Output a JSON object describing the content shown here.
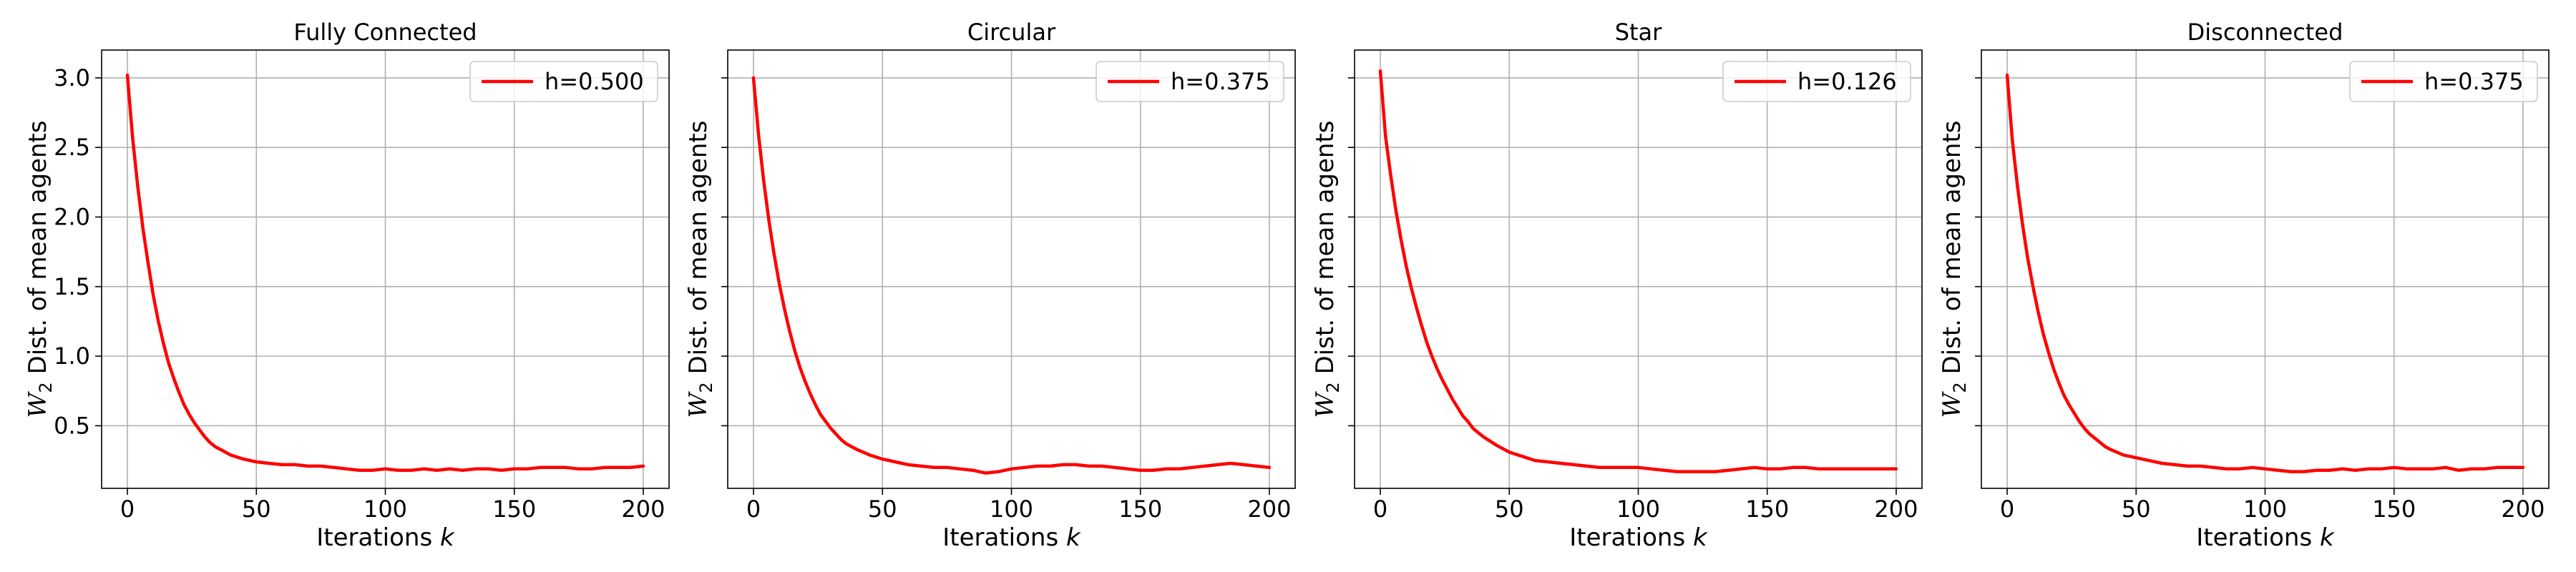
{
  "figure": {
    "background": "#ffffff"
  },
  "chart_data": [
    {
      "type": "line",
      "title": "Fully Connected",
      "xlabel": "Iterations k",
      "ylabel": "W2 Dist. of mean agents",
      "xlim": [
        -10,
        210
      ],
      "ylim": [
        0.05,
        3.2
      ],
      "xticks": [
        0,
        50,
        100,
        150,
        200
      ],
      "yticks": [
        0.5,
        1.0,
        1.5,
        2.0,
        2.5,
        3.0
      ],
      "ytick_labels": [
        "0.5",
        "1.0",
        "1.5",
        "2.0",
        "2.5",
        "3.0"
      ],
      "show_ytick_labels": true,
      "grid": true,
      "legend_position": "upper right",
      "series": [
        {
          "name": "h=0.500",
          "color": "#ff0000",
          "x": [
            0,
            2,
            4,
            6,
            8,
            10,
            12,
            14,
            16,
            18,
            20,
            22,
            24,
            26,
            28,
            30,
            32,
            34,
            36,
            38,
            40,
            45,
            50,
            55,
            60,
            65,
            70,
            75,
            80,
            85,
            90,
            95,
            100,
            105,
            110,
            115,
            120,
            125,
            130,
            135,
            140,
            145,
            150,
            155,
            160,
            165,
            170,
            175,
            180,
            185,
            190,
            195,
            200
          ],
          "y": [
            3.02,
            2.57,
            2.22,
            1.92,
            1.67,
            1.44,
            1.25,
            1.09,
            0.95,
            0.84,
            0.74,
            0.65,
            0.58,
            0.52,
            0.47,
            0.42,
            0.38,
            0.35,
            0.33,
            0.31,
            0.29,
            0.26,
            0.24,
            0.23,
            0.22,
            0.22,
            0.21,
            0.21,
            0.2,
            0.19,
            0.18,
            0.18,
            0.19,
            0.18,
            0.18,
            0.19,
            0.18,
            0.19,
            0.18,
            0.19,
            0.19,
            0.18,
            0.19,
            0.19,
            0.2,
            0.2,
            0.2,
            0.19,
            0.19,
            0.2,
            0.2,
            0.2,
            0.21
          ]
        }
      ]
    },
    {
      "type": "line",
      "title": "Circular",
      "xlabel": "Iterations k",
      "ylabel": "W2 Dist. of mean agents",
      "xlim": [
        -10,
        210
      ],
      "ylim": [
        0.05,
        3.2
      ],
      "xticks": [
        0,
        50,
        100,
        150,
        200
      ],
      "yticks": [
        0.5,
        1.0,
        1.5,
        2.0,
        2.5,
        3.0
      ],
      "ytick_labels": [
        "0.5",
        "1.0",
        "1.5",
        "2.0",
        "2.5",
        "3.0"
      ],
      "show_ytick_labels": false,
      "grid": true,
      "legend_position": "upper right",
      "series": [
        {
          "name": "h=0.375",
          "color": "#ff0000",
          "x": [
            0,
            2,
            4,
            6,
            8,
            10,
            12,
            14,
            16,
            18,
            20,
            22,
            24,
            26,
            28,
            30,
            32,
            34,
            36,
            38,
            40,
            45,
            50,
            55,
            60,
            65,
            70,
            75,
            80,
            85,
            90,
            95,
            100,
            105,
            110,
            115,
            120,
            125,
            130,
            135,
            140,
            145,
            150,
            155,
            160,
            165,
            170,
            175,
            180,
            185,
            190,
            195,
            200
          ],
          "y": [
            3.0,
            2.58,
            2.25,
            1.97,
            1.73,
            1.52,
            1.34,
            1.18,
            1.04,
            0.92,
            0.82,
            0.73,
            0.65,
            0.58,
            0.53,
            0.48,
            0.44,
            0.4,
            0.37,
            0.35,
            0.33,
            0.29,
            0.26,
            0.24,
            0.22,
            0.21,
            0.2,
            0.2,
            0.19,
            0.18,
            0.16,
            0.17,
            0.19,
            0.2,
            0.21,
            0.21,
            0.22,
            0.22,
            0.21,
            0.21,
            0.2,
            0.19,
            0.18,
            0.18,
            0.19,
            0.19,
            0.2,
            0.21,
            0.22,
            0.23,
            0.22,
            0.21,
            0.2
          ]
        }
      ]
    },
    {
      "type": "line",
      "title": "Star",
      "xlabel": "Iterations k",
      "ylabel": "W2 Dist. of mean agents",
      "xlim": [
        -10,
        210
      ],
      "ylim": [
        0.05,
        3.2
      ],
      "xticks": [
        0,
        50,
        100,
        150,
        200
      ],
      "yticks": [
        0.5,
        1.0,
        1.5,
        2.0,
        2.5,
        3.0
      ],
      "ytick_labels": [
        "0.5",
        "1.0",
        "1.5",
        "2.0",
        "2.5",
        "3.0"
      ],
      "show_ytick_labels": false,
      "grid": true,
      "legend_position": "upper right",
      "series": [
        {
          "name": "h=0.126",
          "color": "#ff0000",
          "x": [
            0,
            2,
            4,
            6,
            8,
            10,
            12,
            14,
            16,
            18,
            20,
            22,
            24,
            26,
            28,
            30,
            32,
            34,
            36,
            38,
            40,
            45,
            50,
            55,
            60,
            65,
            70,
            75,
            80,
            85,
            90,
            95,
            100,
            105,
            110,
            115,
            120,
            125,
            130,
            135,
            140,
            145,
            150,
            155,
            160,
            165,
            170,
            175,
            180,
            185,
            190,
            195,
            200
          ],
          "y": [
            3.05,
            2.58,
            2.3,
            2.05,
            1.84,
            1.65,
            1.49,
            1.35,
            1.22,
            1.1,
            1.0,
            0.91,
            0.83,
            0.76,
            0.69,
            0.63,
            0.57,
            0.53,
            0.48,
            0.45,
            0.42,
            0.36,
            0.31,
            0.28,
            0.25,
            0.24,
            0.23,
            0.22,
            0.21,
            0.2,
            0.2,
            0.2,
            0.2,
            0.19,
            0.18,
            0.17,
            0.17,
            0.17,
            0.17,
            0.18,
            0.19,
            0.2,
            0.19,
            0.19,
            0.2,
            0.2,
            0.19,
            0.19,
            0.19,
            0.19,
            0.19,
            0.19,
            0.19
          ]
        }
      ]
    },
    {
      "type": "line",
      "title": "Disconnected",
      "xlabel": "Iterations k",
      "ylabel": "W2 Dist. of mean agents",
      "xlim": [
        -10,
        210
      ],
      "ylim": [
        0.05,
        3.2
      ],
      "xticks": [
        0,
        50,
        100,
        150,
        200
      ],
      "yticks": [
        0.5,
        1.0,
        1.5,
        2.0,
        2.5,
        3.0
      ],
      "ytick_labels": [
        "0.5",
        "1.0",
        "1.5",
        "2.0",
        "2.5",
        "3.0"
      ],
      "show_ytick_labels": false,
      "grid": true,
      "legend_position": "upper right",
      "series": [
        {
          "name": "h=0.375",
          "color": "#ff0000",
          "x": [
            0,
            2,
            4,
            6,
            8,
            10,
            12,
            14,
            16,
            18,
            20,
            22,
            24,
            26,
            28,
            30,
            32,
            34,
            36,
            38,
            40,
            45,
            50,
            55,
            60,
            65,
            70,
            75,
            80,
            85,
            90,
            95,
            100,
            105,
            110,
            115,
            120,
            125,
            130,
            135,
            140,
            145,
            150,
            155,
            160,
            165,
            170,
            175,
            180,
            185,
            190,
            195,
            200
          ],
          "y": [
            3.02,
            2.55,
            2.22,
            1.94,
            1.7,
            1.5,
            1.32,
            1.16,
            1.03,
            0.91,
            0.81,
            0.72,
            0.65,
            0.59,
            0.53,
            0.48,
            0.44,
            0.41,
            0.38,
            0.35,
            0.33,
            0.29,
            0.27,
            0.25,
            0.23,
            0.22,
            0.21,
            0.21,
            0.2,
            0.19,
            0.19,
            0.2,
            0.19,
            0.18,
            0.17,
            0.17,
            0.18,
            0.18,
            0.19,
            0.18,
            0.19,
            0.19,
            0.2,
            0.19,
            0.19,
            0.19,
            0.2,
            0.18,
            0.19,
            0.19,
            0.2,
            0.2,
            0.2
          ]
        }
      ]
    }
  ]
}
